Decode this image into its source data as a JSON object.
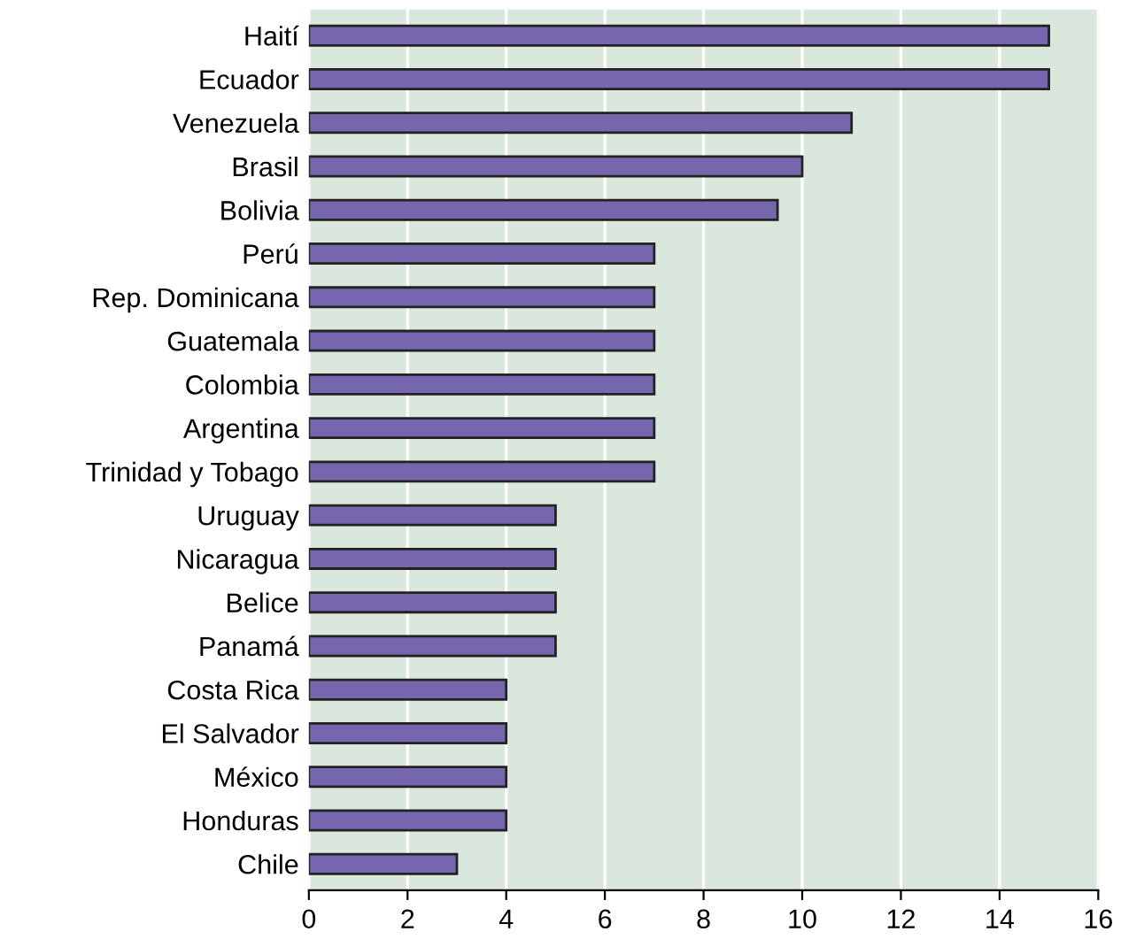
{
  "chart_data": {
    "type": "bar",
    "orientation": "horizontal",
    "categories": [
      "Haití",
      "Ecuador",
      "Venezuela",
      "Brasil",
      "Bolivia",
      "Perú",
      "Rep. Dominicana",
      "Guatemala",
      "Colombia",
      "Argentina",
      "Trinidad y Tobago",
      "Uruguay",
      "Nicaragua",
      "Belice",
      "Panamá",
      "Costa Rica",
      "El Salvador",
      "México",
      "Honduras",
      "Chile"
    ],
    "values": [
      15,
      15,
      11,
      10,
      9.5,
      7,
      7,
      7,
      7,
      7,
      7,
      5,
      5,
      5,
      5,
      4,
      4,
      4,
      4,
      3
    ],
    "color": "#7566ad",
    "xlim": [
      0,
      16
    ],
    "xticks": [
      0,
      2,
      4,
      6,
      8,
      10,
      12,
      14,
      16
    ],
    "grid": "x"
  }
}
